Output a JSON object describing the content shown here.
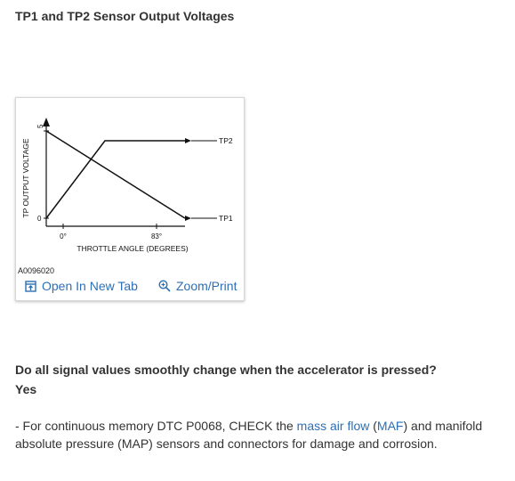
{
  "title": "TP1 and TP2 Sensor Output Voltages",
  "figure": {
    "id": "A0096020",
    "ylabel": "TP OUTPUT VOLTAGE",
    "xlabel": "THROTTLE ANGLE (DEGREES)",
    "y_tick_low": "0",
    "y_tick_high": "5",
    "x_tick_low": "0°",
    "x_tick_high": "83°",
    "series_tp2_label": "TP2",
    "series_tp1_label": "TP1",
    "open_tab_label": "Open In New Tab",
    "zoom_label": "Zoom/Print",
    "link_color": "#2d6fb5",
    "open_icon": "open-in-new-tab-icon",
    "zoom_icon": "magnifier-plus-icon"
  },
  "chart_data": {
    "type": "line",
    "xlabel": "THROTTLE ANGLE (DEGREES)",
    "ylabel": "TP OUTPUT VOLTAGE",
    "x_ticks": [
      "0°",
      "83°"
    ],
    "y_ticks": [
      "0",
      "5"
    ],
    "series": [
      {
        "name": "TP2",
        "x": [
          0,
          83
        ],
        "y": [
          0,
          4
        ]
      },
      {
        "name": "TP1",
        "x": [
          0,
          83
        ],
        "y": [
          5,
          0
        ]
      }
    ]
  },
  "question": "Do all signal values smoothly change when the accelerator is pressed?",
  "answer": "Yes",
  "paragraph": {
    "prefix": " -  For continuous memory DTC P0068, CHECK the ",
    "link1": "mass air flow",
    "mid1": " (",
    "link2": "MAF",
    "suffix": ") and manifold absolute pressure (MAP) sensors and connectors for damage and corrosion."
  }
}
